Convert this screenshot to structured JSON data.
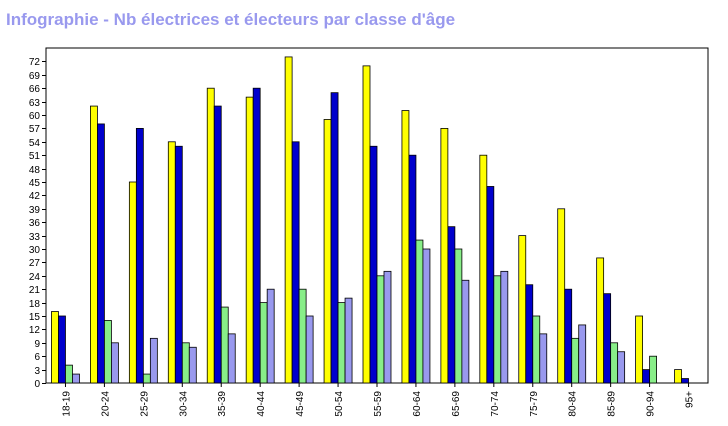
{
  "title": "Infographie - Nb électrices et électeurs par classe d'âge",
  "chart_data": {
    "type": "bar",
    "title": "Infographie - Nb électrices et électeurs par classe d'âge",
    "xlabel": "",
    "ylabel": "",
    "ylim": [
      0,
      75
    ],
    "ytick_step": 3,
    "grid": false,
    "legend": "none",
    "categories": [
      "18-19",
      "20-24",
      "25-29",
      "30-34",
      "35-39",
      "40-44",
      "45-49",
      "50-54",
      "55-59",
      "60-64",
      "65-69",
      "70-74",
      "75-79",
      "80-84",
      "85-89",
      "90-94",
      "95+"
    ],
    "series": [
      {
        "color": "#ffff00",
        "values": [
          16,
          62,
          45,
          54,
          66,
          64,
          73,
          59,
          71,
          61,
          57,
          51,
          33,
          39,
          28,
          15,
          3
        ]
      },
      {
        "color": "#0000cc",
        "values": [
          15,
          58,
          57,
          53,
          62,
          66,
          54,
          65,
          53,
          51,
          35,
          44,
          22,
          21,
          20,
          3,
          1
        ]
      },
      {
        "color": "#88ee88",
        "values": [
          4,
          14,
          2,
          9,
          17,
          18,
          21,
          18,
          24,
          32,
          30,
          24,
          15,
          10,
          9,
          6,
          0
        ]
      },
      {
        "color": "#9999ee",
        "values": [
          2,
          9,
          10,
          8,
          11,
          21,
          15,
          19,
          25,
          30,
          23,
          25,
          11,
          13,
          7,
          0,
          0
        ]
      }
    ]
  }
}
